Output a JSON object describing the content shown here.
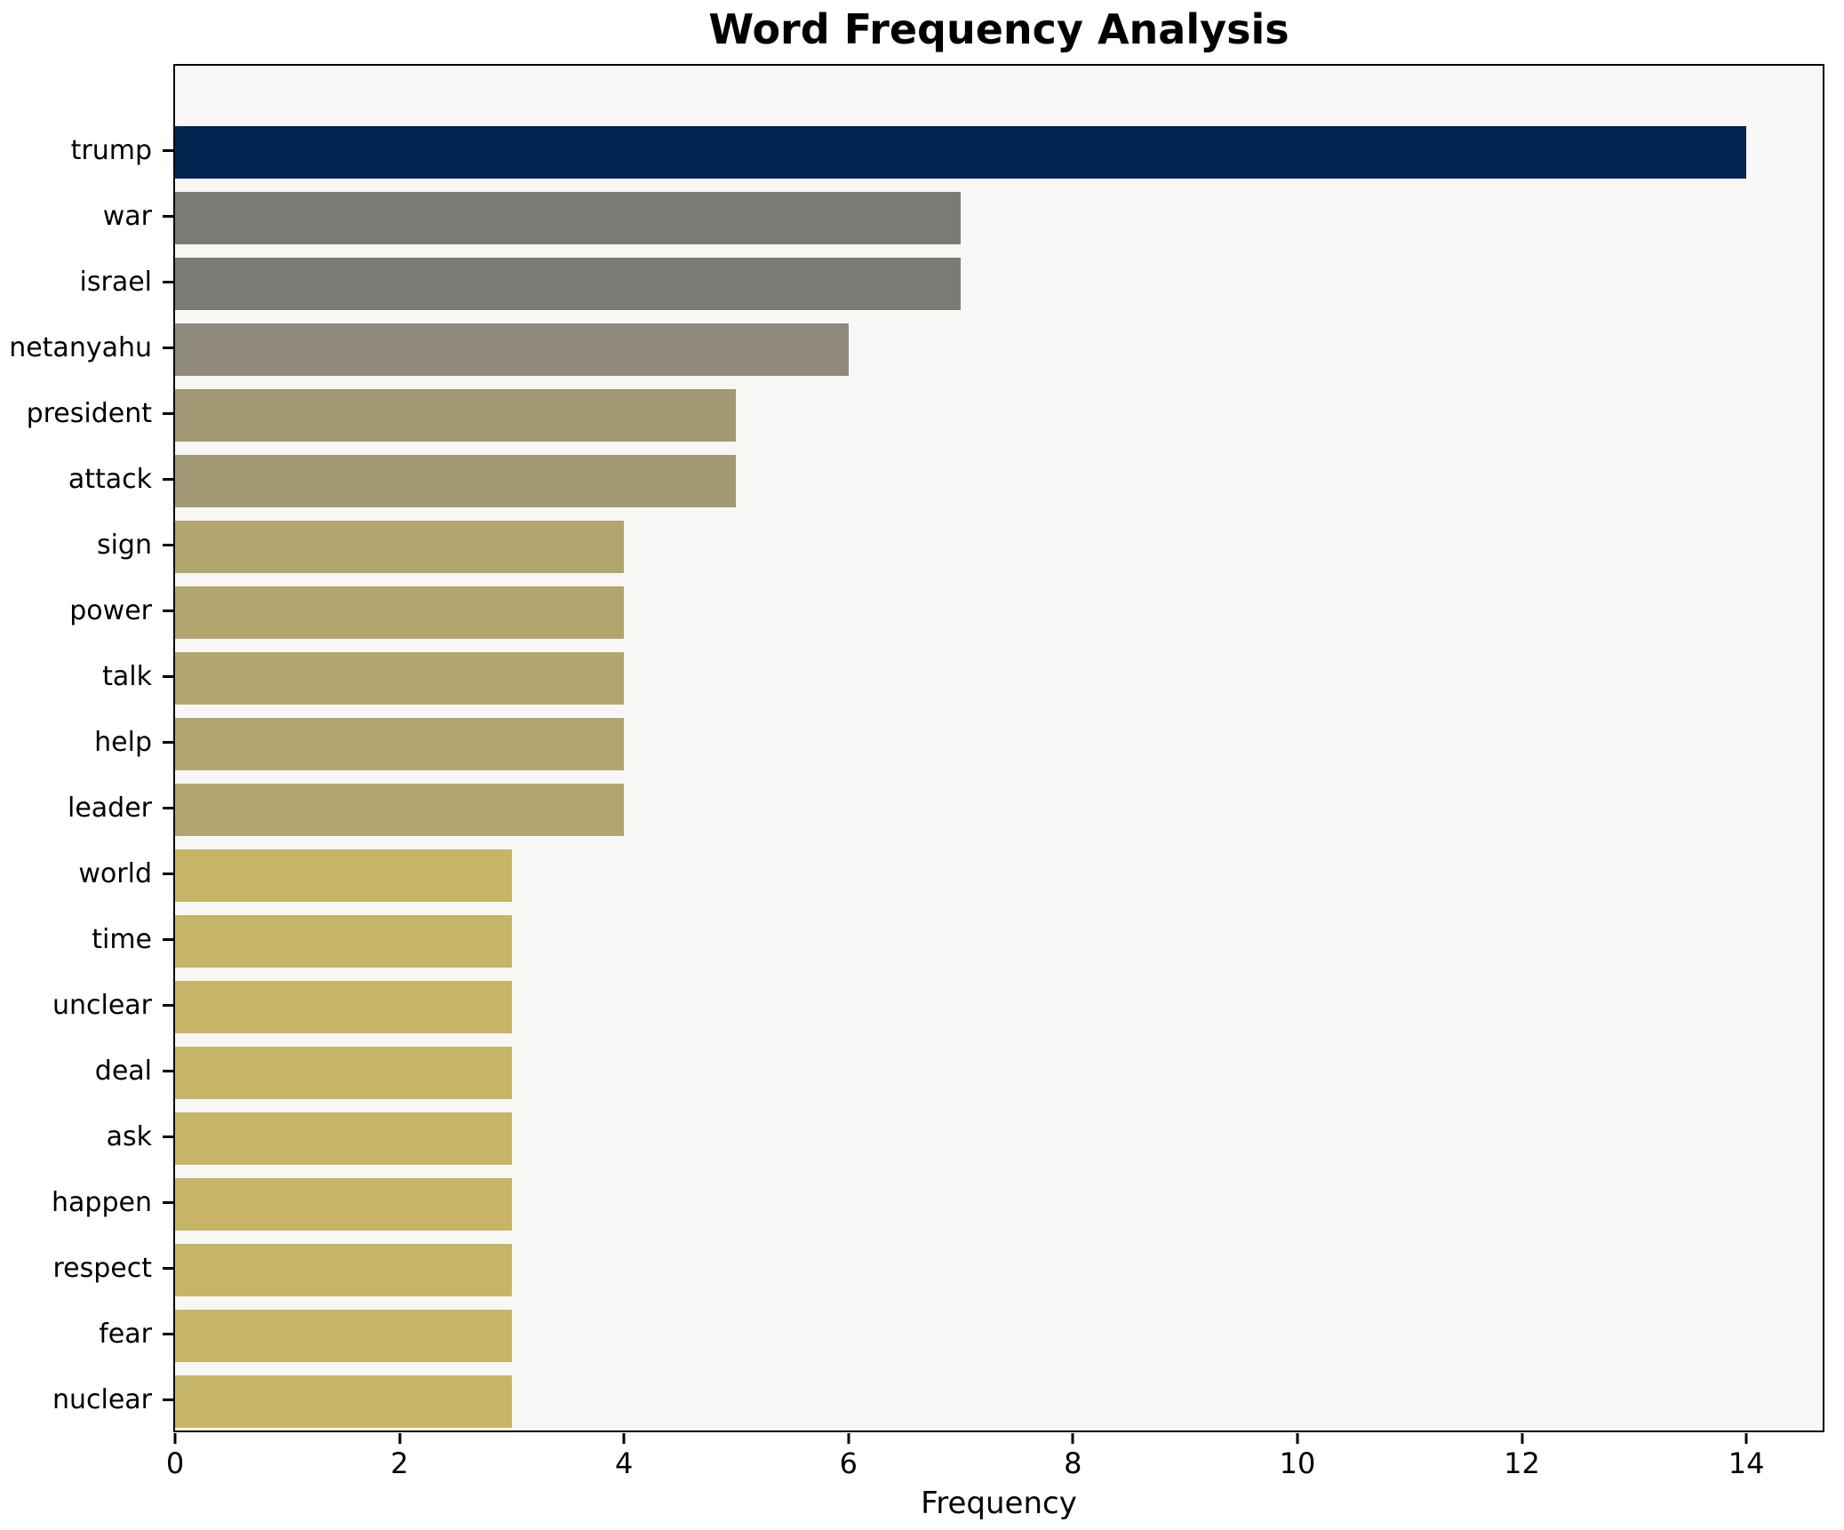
{
  "title": "Word Frequency Analysis",
  "xlabel": "Frequency",
  "colors": {
    "figure_background": "#ffffff",
    "plot_background": "#f7f7f5",
    "spine": "#000000",
    "text": "#000000"
  },
  "chart_data": {
    "type": "bar",
    "orientation": "horizontal",
    "title": "Word Frequency Analysis",
    "xlabel": "Frequency",
    "ylabel": "",
    "categories": [
      "trump",
      "war",
      "israel",
      "netanyahu",
      "president",
      "attack",
      "sign",
      "power",
      "talk",
      "help",
      "leader",
      "world",
      "time",
      "unclear",
      "deal",
      "ask",
      "happen",
      "respect",
      "fear",
      "nuclear"
    ],
    "values": [
      14,
      7,
      7,
      6,
      5,
      5,
      4,
      4,
      4,
      4,
      4,
      3,
      3,
      3,
      3,
      3,
      3,
      3,
      3,
      3
    ],
    "bar_colors": [
      "#022451",
      "#7b7a74",
      "#7b7a74",
      "#8f8a79",
      "#a19974",
      "#a19974",
      "#b1a66e",
      "#b1a66e",
      "#b1a66e",
      "#b1a66e",
      "#b1a66e",
      "#c6b467",
      "#c6b467",
      "#c6b467",
      "#c6b467",
      "#c6b467",
      "#c6b467",
      "#c6b467",
      "#c6b467",
      "#c6b467"
    ],
    "xlim": [
      0,
      14.68
    ],
    "xticks": [
      0,
      2,
      4,
      6,
      8,
      10,
      12,
      14
    ],
    "grid": false,
    "legend": false,
    "colormap_note": "cividis-style gradient, darker = higher frequency"
  }
}
